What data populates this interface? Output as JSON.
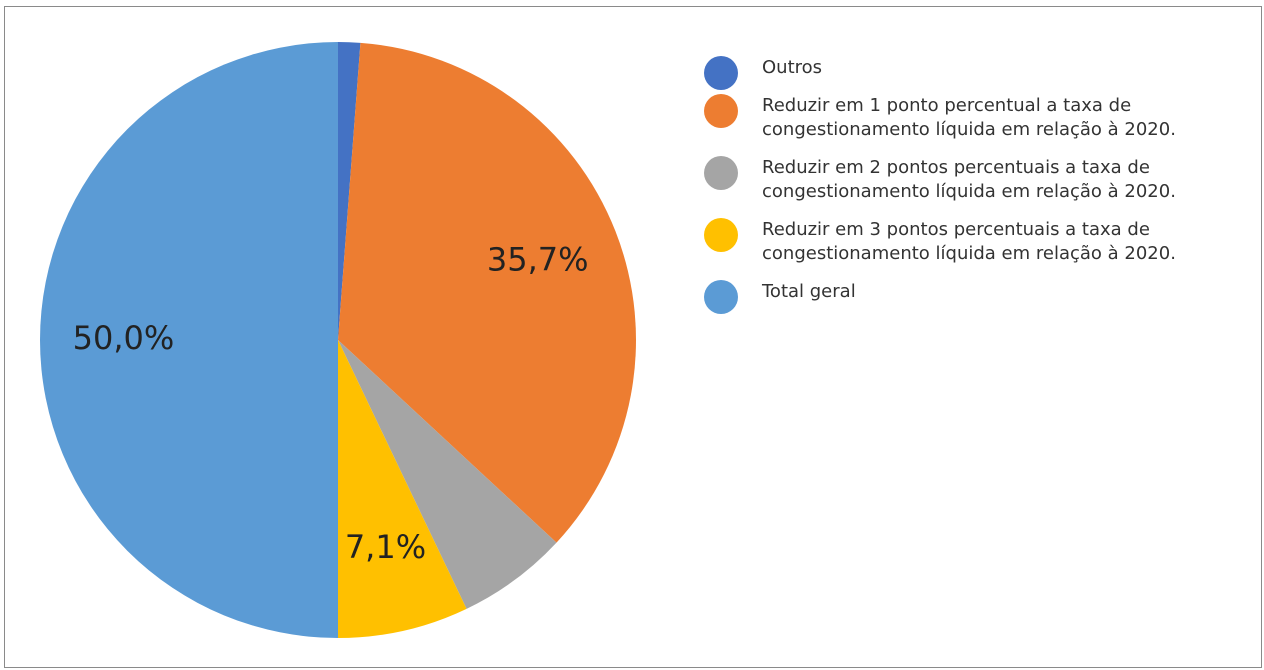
{
  "chart_data": {
    "type": "pie",
    "categories": [
      "Outros",
      "Reduzir em 1 ponto percentual a taxa de congestionamento líquida em relação à 2020.",
      "Reduzir em 2 pontos percentuais a taxa de congestionamento líquida em relação à 2020.",
      "Reduzir em 3 pontos percentuais a taxa de congestionamento líquida em relação à 2020.",
      "Total geral"
    ],
    "values": [
      1.2,
      35.7,
      6.0,
      7.1,
      50.0
    ],
    "value_labels": [
      null,
      "35,7%",
      null,
      "7,1%",
      "50,0%"
    ],
    "colors": [
      "#4472c4",
      "#ed7d31",
      "#a5a5a5",
      "#ffc000",
      "#5b9bd5"
    ],
    "legend": "right"
  }
}
